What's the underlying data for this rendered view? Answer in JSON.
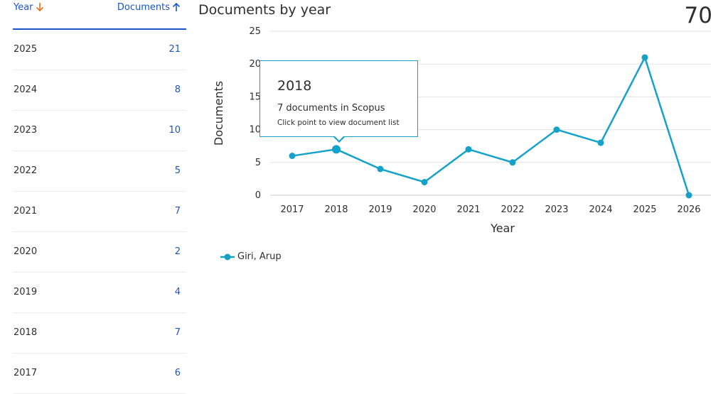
{
  "table": {
    "year_header": "Year",
    "docs_header": "Documents",
    "rows": [
      {
        "year": "2025",
        "count": "21"
      },
      {
        "year": "2024",
        "count": "8"
      },
      {
        "year": "2023",
        "count": "10"
      },
      {
        "year": "2022",
        "count": "5"
      },
      {
        "year": "2021",
        "count": "7"
      },
      {
        "year": "2020",
        "count": "2"
      },
      {
        "year": "2019",
        "count": "4"
      },
      {
        "year": "2018",
        "count": "7"
      },
      {
        "year": "2017",
        "count": "6"
      }
    ]
  },
  "header": {
    "title": "Documents by year",
    "total": "70"
  },
  "tooltip": {
    "year": "2018",
    "count_text": "7 documents in Scopus",
    "hint": "Click point to view document list"
  },
  "legend": {
    "label": "Giri, Arup"
  },
  "colors": {
    "series": "#14a2c9",
    "link": "#1a55c7",
    "sort_desc": "#e9711c"
  },
  "chart_data": {
    "type": "line",
    "title": "Documents by year",
    "xlabel": "Year",
    "ylabel": "Documents",
    "x": [
      2017,
      2018,
      2019,
      2020,
      2021,
      2022,
      2023,
      2024,
      2025,
      2026
    ],
    "series": [
      {
        "name": "Giri, Arup",
        "values": [
          6,
          7,
          4,
          2,
          7,
          5,
          10,
          8,
          21,
          0
        ]
      }
    ],
    "ylim": [
      0,
      25
    ],
    "yticks": [
      0,
      5,
      10,
      15,
      20,
      25
    ],
    "highlighted_x": 2018,
    "grid": true,
    "legend": "bottom-left"
  }
}
